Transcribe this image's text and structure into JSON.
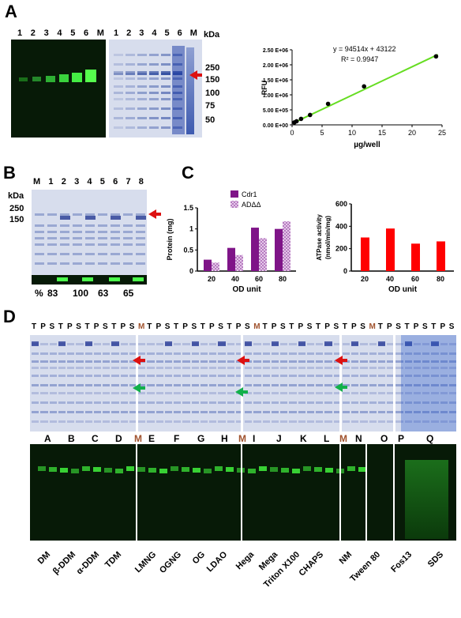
{
  "panel_labels": {
    "a": "A",
    "b": "B",
    "c": "C",
    "d": "D"
  },
  "panelA": {
    "lanes_green": [
      "1",
      "2",
      "3",
      "4",
      "5",
      "6",
      "M"
    ],
    "lanes_blue": [
      "1",
      "2",
      "3",
      "4",
      "5",
      "6",
      "M"
    ],
    "kda_label": "kDa",
    "markers": [
      "250",
      "150",
      "100",
      "75",
      "50"
    ],
    "chart": {
      "equation": "y = 94514x + 43122",
      "r2": "R² = 0.9947",
      "ylabel": "RFU",
      "xlabel": "µg/well",
      "yticks": [
        "0.00 E+00",
        "5.00 E+05",
        "1.00 E+06",
        "1.50 E+06",
        "2.00 E+06",
        "2.50 E+06"
      ],
      "xticks": [
        "0",
        "5",
        "10",
        "15",
        "20",
        "25"
      ]
    }
  },
  "panelB": {
    "kda_label": "kDa",
    "lanes": [
      "M",
      "1",
      "2",
      "3",
      "4",
      "5",
      "6",
      "7",
      "8"
    ],
    "markers": [
      "250",
      "150"
    ],
    "percent_label": "%",
    "percents": [
      "83",
      "100",
      "63",
      "65"
    ]
  },
  "panelC": {
    "legend": [
      "Cdr1",
      "ADΔΔ"
    ],
    "left": {
      "ylabel": "Protein (mg)",
      "xlabel": "OD unit",
      "yticks": [
        "0",
        "0.5",
        "1",
        "1.5"
      ],
      "xticks": [
        "20",
        "40",
        "60",
        "80"
      ]
    },
    "right": {
      "ylabel": "ATPase activity",
      "ylabel2": "(nmol/min/mg)",
      "xlabel": "OD unit",
      "yticks": [
        "0",
        "200",
        "400",
        "600"
      ],
      "xticks": [
        "20",
        "40",
        "60",
        "80"
      ]
    }
  },
  "panelD": {
    "lane_groups": [
      "T",
      "P",
      "S",
      "T",
      "P",
      "S",
      "T",
      "P",
      "S",
      "T",
      "P",
      "S",
      "M",
      "T",
      "P",
      "S",
      "T",
      "P",
      "S",
      "T",
      "P",
      "S",
      "T",
      "P",
      "S",
      "M",
      "T",
      "P",
      "S",
      "T",
      "P",
      "S",
      "T",
      "P",
      "S",
      "T",
      "P",
      "S",
      "M",
      "T",
      "P",
      "S",
      "T",
      "P",
      "S",
      "T",
      "P",
      "S"
    ],
    "letters": [
      "A",
      "B",
      "C",
      "D",
      "M",
      "E",
      "F",
      "G",
      "H",
      "M",
      "I",
      "J",
      "K",
      "L",
      "M",
      "N",
      "O",
      "P",
      "Q"
    ],
    "detergents": [
      "DM",
      "β-DDM",
      "α-DDM",
      "TDM",
      "LMNG",
      "OGNG",
      "OG",
      "LDAO",
      "Hega",
      "Mega",
      "Triton X100",
      "CHAPS",
      "NM",
      "Tween 80",
      "Fos13",
      "SDS"
    ]
  },
  "chart_data": [
    {
      "type": "scatter",
      "title": "",
      "xlabel": "µg/well",
      "ylabel": "RFU",
      "x": [
        0.375,
        0.75,
        1.5,
        3,
        6,
        12,
        24
      ],
      "y": [
        80000,
        120000,
        200000,
        330000,
        700000,
        1280000,
        2280000
      ],
      "fit": {
        "slope": 94514,
        "intercept": 43122,
        "r2": 0.9947
      },
      "xlim": [
        0,
        25
      ],
      "ylim": [
        0,
        2500000
      ]
    },
    {
      "type": "bar",
      "xlabel": "OD unit",
      "ylabel": "Protein (mg)",
      "categories": [
        "20",
        "40",
        "60",
        "80"
      ],
      "series": [
        {
          "name": "Cdr1",
          "values": [
            0.27,
            0.55,
            1.03,
            1.0
          ]
        },
        {
          "name": "ADΔΔ",
          "values": [
            0.2,
            0.38,
            0.78,
            1.18
          ]
        }
      ],
      "ylim": [
        0,
        1.5
      ]
    },
    {
      "type": "bar",
      "xlabel": "OD unit",
      "ylabel": "ATPase activity (nmol/min/mg)",
      "categories": [
        "20",
        "40",
        "60",
        "80"
      ],
      "values": [
        300,
        380,
        245,
        265
      ],
      "ylim": [
        0,
        600
      ]
    }
  ],
  "colors": {
    "cdr1": "#7f1488",
    "addd": "#b67cc0",
    "atpase": "#ff0000",
    "fit": "#66dd22",
    "arrow_red": "#dd1111",
    "arrow_green": "#12b04a",
    "marker_M": "#a0522d"
  }
}
